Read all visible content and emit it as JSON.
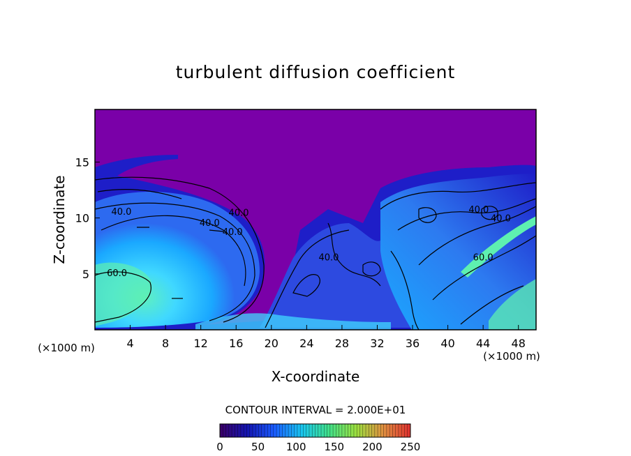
{
  "chart_data": {
    "type": "heatmap",
    "title": "turbulent diffusion coefficient",
    "xlabel": "X-coordinate",
    "ylabel": "Z-coordinate",
    "x_unit": "(×1000 m)",
    "y_unit": "(×1000 m)",
    "x_ticks": [
      4,
      8,
      12,
      16,
      20,
      24,
      28,
      32,
      36,
      40,
      44,
      48
    ],
    "y_ticks": [
      5,
      10,
      15
    ],
    "xlim": [
      0,
      50
    ],
    "ylim": [
      0,
      19.7
    ],
    "contour_interval_text": "CONTOUR INTERVAL = 2.000E+01",
    "contour_interval": 20,
    "contour_labels": [
      {
        "text": "40.0",
        "x": 3.0,
        "z": 10.6
      },
      {
        "text": "40.0",
        "x": 13.0,
        "z": 9.6
      },
      {
        "text": "40.0",
        "x": 16.3,
        "z": 10.5
      },
      {
        "text": "40.0",
        "x": 15.6,
        "z": 8.8
      },
      {
        "text": "60.0",
        "x": 2.5,
        "z": 5.1
      },
      {
        "text": "40.0",
        "x": 26.5,
        "z": 6.5
      },
      {
        "text": "40.0",
        "x": 43.5,
        "z": 10.8
      },
      {
        "text": "40.0",
        "x": 46.0,
        "z": 10.0
      },
      {
        "text": "60.0",
        "x": 44.0,
        "z": 6.5
      }
    ],
    "colorbar": {
      "ticks": [
        "0",
        "50",
        "100",
        "150",
        "200",
        "250"
      ],
      "range": [
        0,
        250
      ],
      "stops": [
        "#3a0066",
        "#1414b0",
        "#1a5cff",
        "#19c6f0",
        "#40e08a",
        "#9be040",
        "#e09040",
        "#e03030"
      ]
    },
    "colors": {
      "background": "#7a00a8",
      "deep_blue": "#1e1ec8",
      "blue": "#2d5af0",
      "cyan": "#1aa8ff",
      "light_cyan": "#40d8ff",
      "green": "#5ef0b0"
    }
  }
}
